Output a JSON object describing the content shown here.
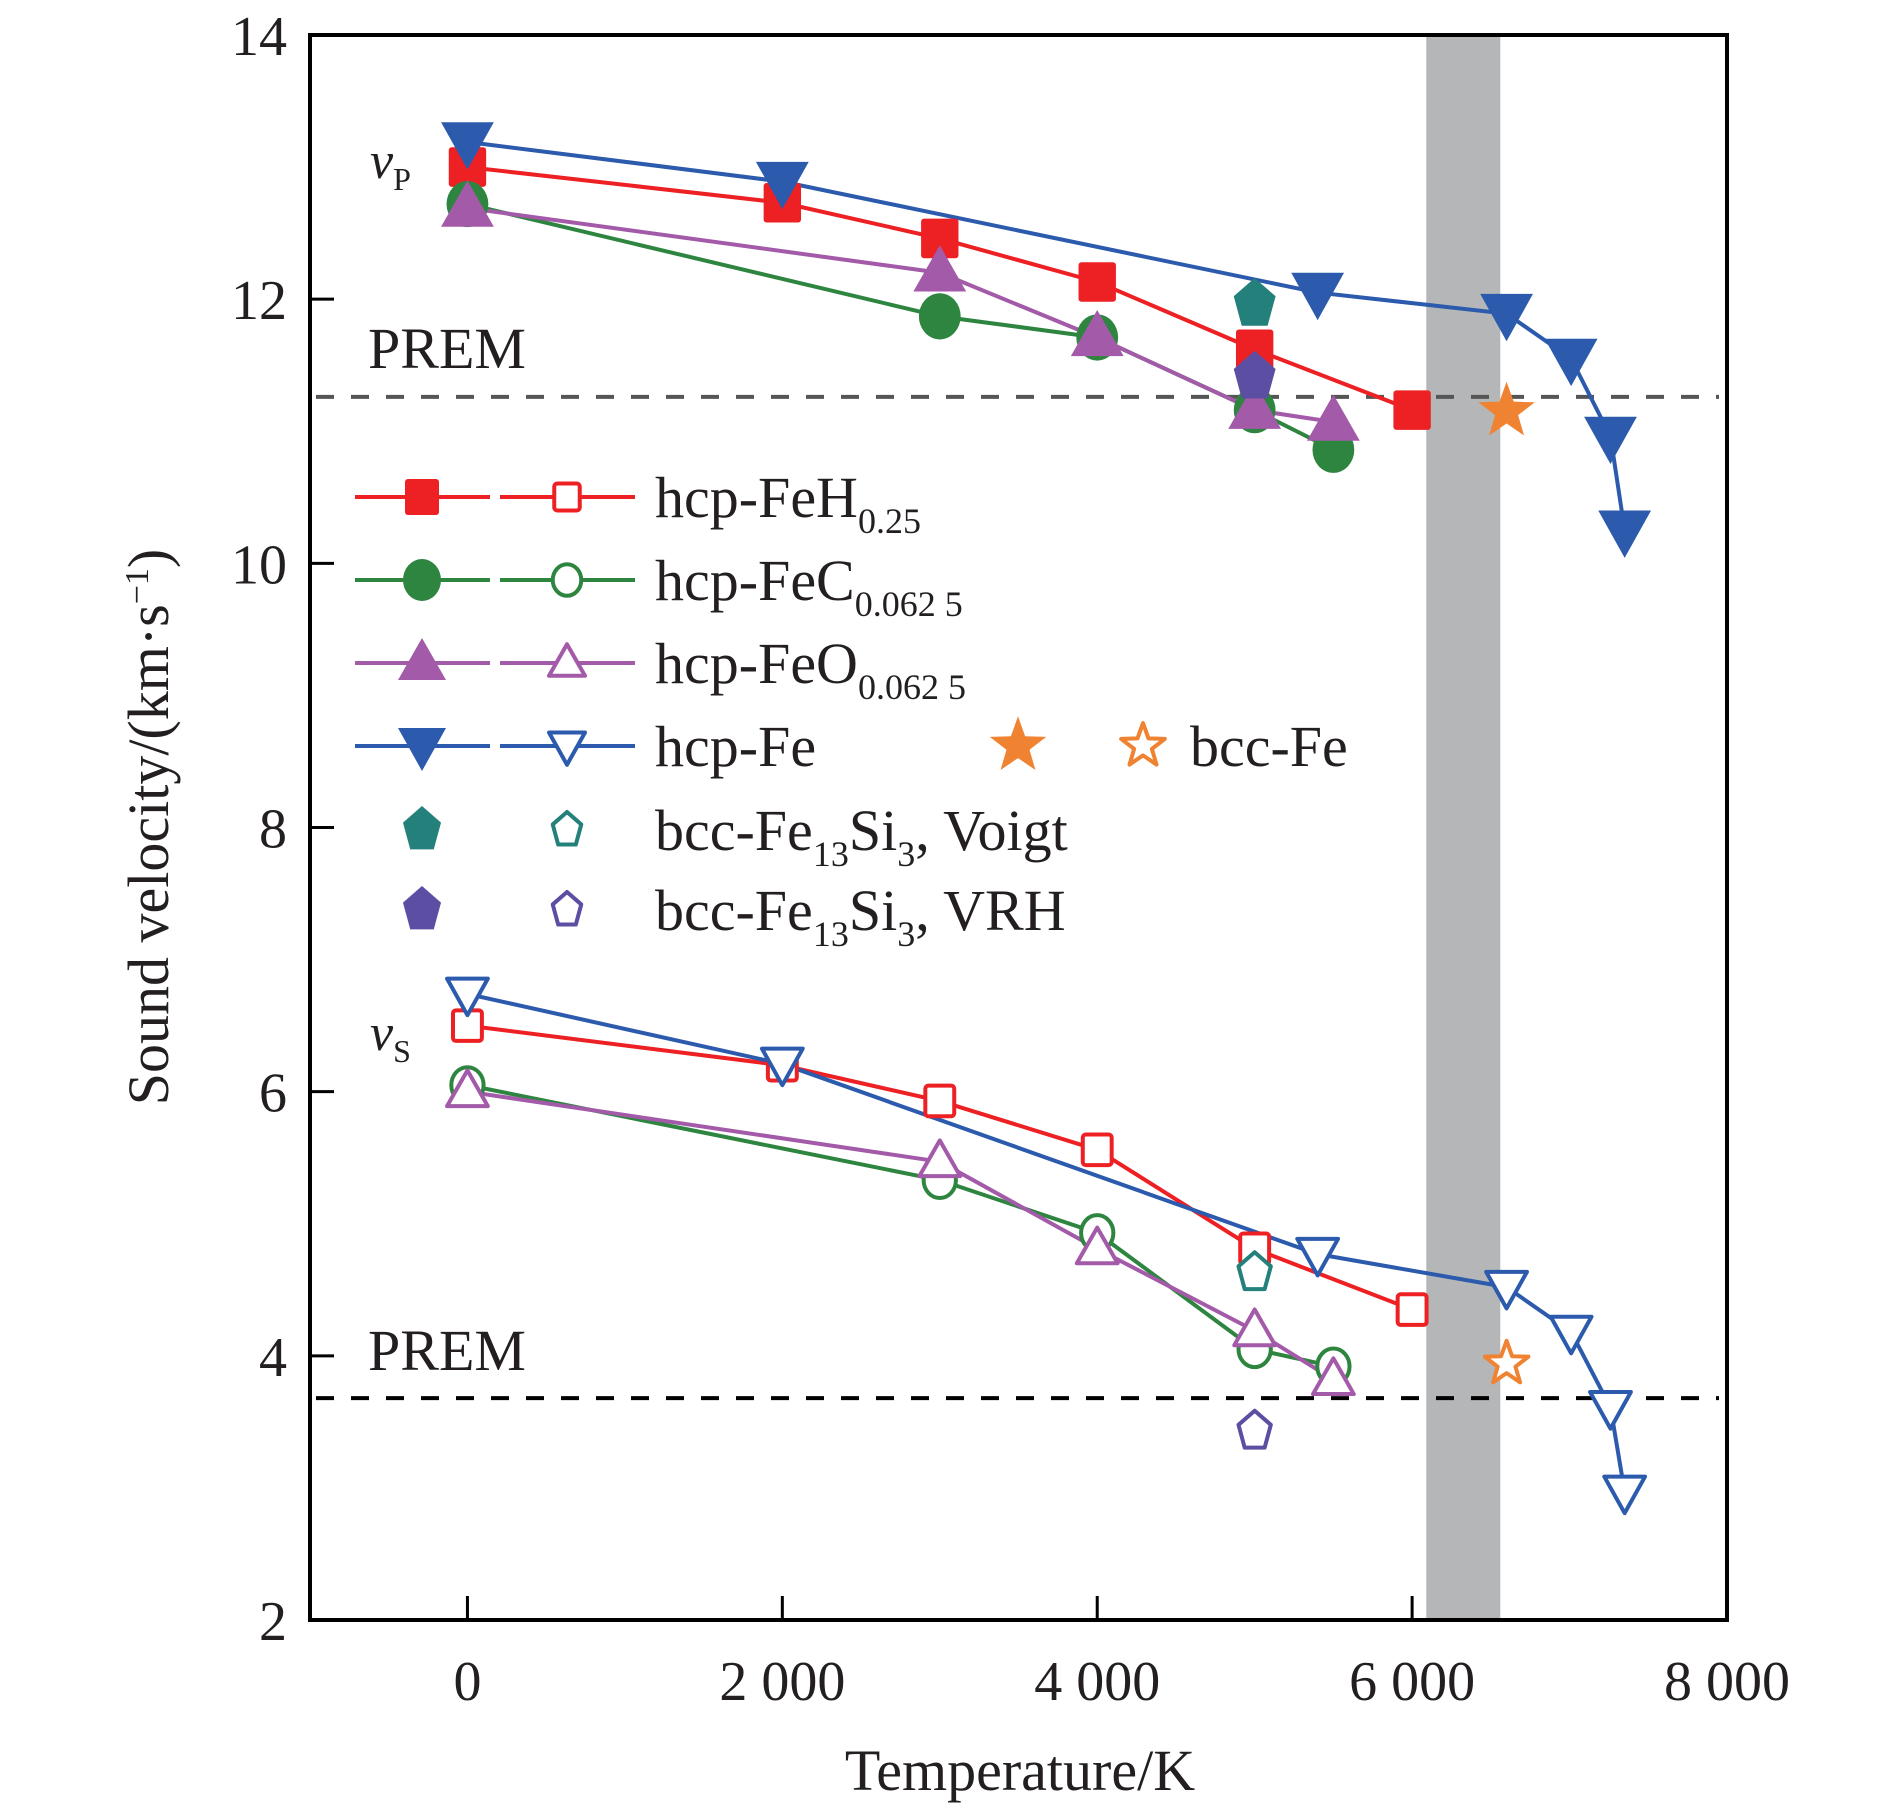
{
  "chart_data": {
    "type": "line",
    "title": "",
    "xlabel": "Temperature/K",
    "ylabel": "Sound velocity/(km·s⁻¹)",
    "xlim": [
      -1000,
      8000
    ],
    "ylim": [
      2,
      14
    ],
    "xticks": [
      0,
      2000,
      4000,
      6000,
      8000
    ],
    "xtick_labels": [
      "0",
      "2 000",
      "4 000",
      "6 000",
      "8 000"
    ],
    "yticks": [
      2,
      4,
      6,
      8,
      10,
      12,
      14
    ],
    "ytick_labels": [
      "2",
      "4",
      "6",
      "8",
      "10",
      "12",
      "14"
    ],
    "grid": false,
    "legend_position": "center-left",
    "shaded_band": {
      "x_range": [
        6090,
        6560
      ],
      "color": "#b5b6b8"
    },
    "reference_lines": [
      {
        "name": "PREM vP",
        "label": "PREM",
        "y": 11.26,
        "color": "#555555"
      },
      {
        "name": "PREM vS",
        "label": "PREM",
        "y": 3.68,
        "color": "#000000"
      }
    ],
    "annotations": [
      {
        "text": "v",
        "sub": "P",
        "x": -400,
        "y": 12.9
      },
      {
        "text": "v",
        "sub": "S",
        "x": -400,
        "y": 6.35
      }
    ],
    "series": [
      {
        "name": "hcp-FeH",
        "sub": "0.25",
        "color": "#ed2024",
        "marker": "square",
        "line": true,
        "vp": {
          "x": [
            0,
            2000,
            3000,
            4000,
            5000,
            6000
          ],
          "y": [
            13.0,
            12.73,
            12.46,
            12.13,
            11.62,
            11.16
          ]
        },
        "vs": {
          "x": [
            0,
            2000,
            3000,
            4000,
            5000,
            6000
          ],
          "y": [
            6.5,
            6.2,
            5.93,
            5.56,
            4.81,
            4.35
          ]
        }
      },
      {
        "name": "hcp-FeC",
        "sub": "0.062 5",
        "color": "#2e8540",
        "marker": "circle",
        "line": true,
        "vp": {
          "x": [
            0,
            3000,
            4000,
            5000,
            5500
          ],
          "y": [
            12.72,
            11.87,
            11.71,
            11.16,
            10.86
          ]
        },
        "vs": {
          "x": [
            0,
            3000,
            4000,
            5000,
            5500
          ],
          "y": [
            6.05,
            5.33,
            4.93,
            4.05,
            3.92
          ]
        }
      },
      {
        "name": "hcp-FeO",
        "sub": "0.062 5",
        "color": "#a35aa8",
        "marker": "triangle-up",
        "line": true,
        "vp": {
          "x": [
            0,
            3000,
            4000,
            5000,
            5500
          ],
          "y": [
            12.69,
            12.2,
            11.71,
            11.16,
            11.07
          ]
        },
        "vs": {
          "x": [
            0,
            3000,
            4000,
            5000,
            5500
          ],
          "y": [
            6.0,
            5.47,
            4.81,
            4.19,
            3.82
          ]
        }
      },
      {
        "name": "hcp-Fe",
        "sub": "",
        "color": "#2c5aad",
        "marker": "triangle-down",
        "line": true,
        "vp": {
          "x": [
            0,
            2000,
            5400,
            6600,
            7010,
            7260,
            7350
          ],
          "y": [
            13.19,
            12.89,
            12.05,
            11.89,
            11.55,
            10.96,
            10.25
          ]
        },
        "vs": {
          "x": [
            0,
            2000,
            5400,
            6600,
            7010,
            7260,
            7350
          ],
          "y": [
            6.74,
            6.21,
            4.77,
            4.52,
            4.18,
            3.61,
            2.97
          ]
        }
      },
      {
        "name": "bcc-Fe",
        "sub": "",
        "color": "#f08332",
        "marker": "star",
        "line": false,
        "vp": {
          "x": [
            6600
          ],
          "y": [
            11.15
          ]
        },
        "vs": {
          "x": [
            6600
          ],
          "y": [
            3.94
          ]
        }
      },
      {
        "name": "bcc-Fe",
        "sub": "13",
        "name2": "Si",
        "sub2": "3",
        "suffix": ", Voigt",
        "color": "#24807a",
        "marker": "pentagon",
        "line": false,
        "vp": {
          "x": [
            5000
          ],
          "y": [
            11.96
          ]
        },
        "vs": {
          "x": [
            5000
          ],
          "y": [
            4.63
          ]
        }
      },
      {
        "name": "bcc-Fe",
        "sub": "13",
        "name2": "Si",
        "sub2": "3",
        "suffix": ", VRH",
        "color": "#5c4ea3",
        "marker": "pentagon",
        "line": false,
        "vp": {
          "x": [
            5000
          ],
          "y": [
            11.41
          ]
        },
        "vs": {
          "x": [
            5000
          ],
          "y": [
            3.43
          ]
        }
      }
    ]
  }
}
